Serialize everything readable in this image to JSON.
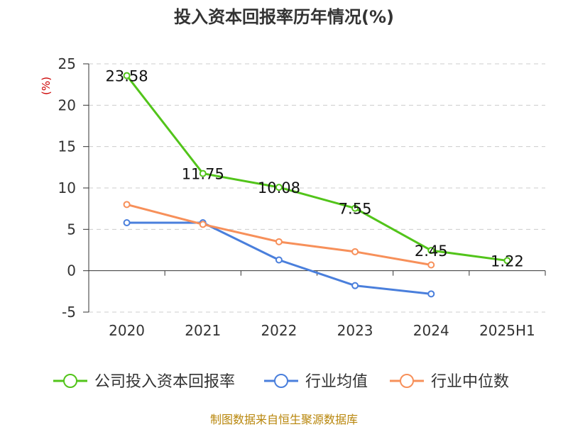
{
  "title": "投入资本回报率历年情况(%)",
  "unit": "(%)",
  "source": "制图数据来自恒生聚源数据库",
  "chart_data": {
    "type": "line",
    "categories": [
      "2020",
      "2021",
      "2022",
      "2023",
      "2024",
      "2025H1"
    ],
    "ylim": [
      -5,
      25
    ],
    "yticks": [
      25,
      20,
      15,
      10,
      5,
      0,
      -5
    ],
    "grid": true,
    "legend_position": "bottom",
    "series": [
      {
        "name": "公司投入资本回报率",
        "color": "#52c41a",
        "values": [
          23.58,
          11.75,
          10.08,
          7.55,
          2.45,
          1.22
        ],
        "labels": [
          "23.58",
          "11.75",
          "10.08",
          "7.55",
          "2.45",
          "1.22"
        ]
      },
      {
        "name": "行业均值",
        "color": "#4a7fdc",
        "values": [
          5.8,
          5.8,
          1.3,
          -1.8,
          -2.8,
          null
        ]
      },
      {
        "name": "行业中位数",
        "color": "#f7905a",
        "values": [
          8.0,
          5.6,
          3.5,
          2.3,
          0.7,
          null
        ]
      }
    ]
  }
}
